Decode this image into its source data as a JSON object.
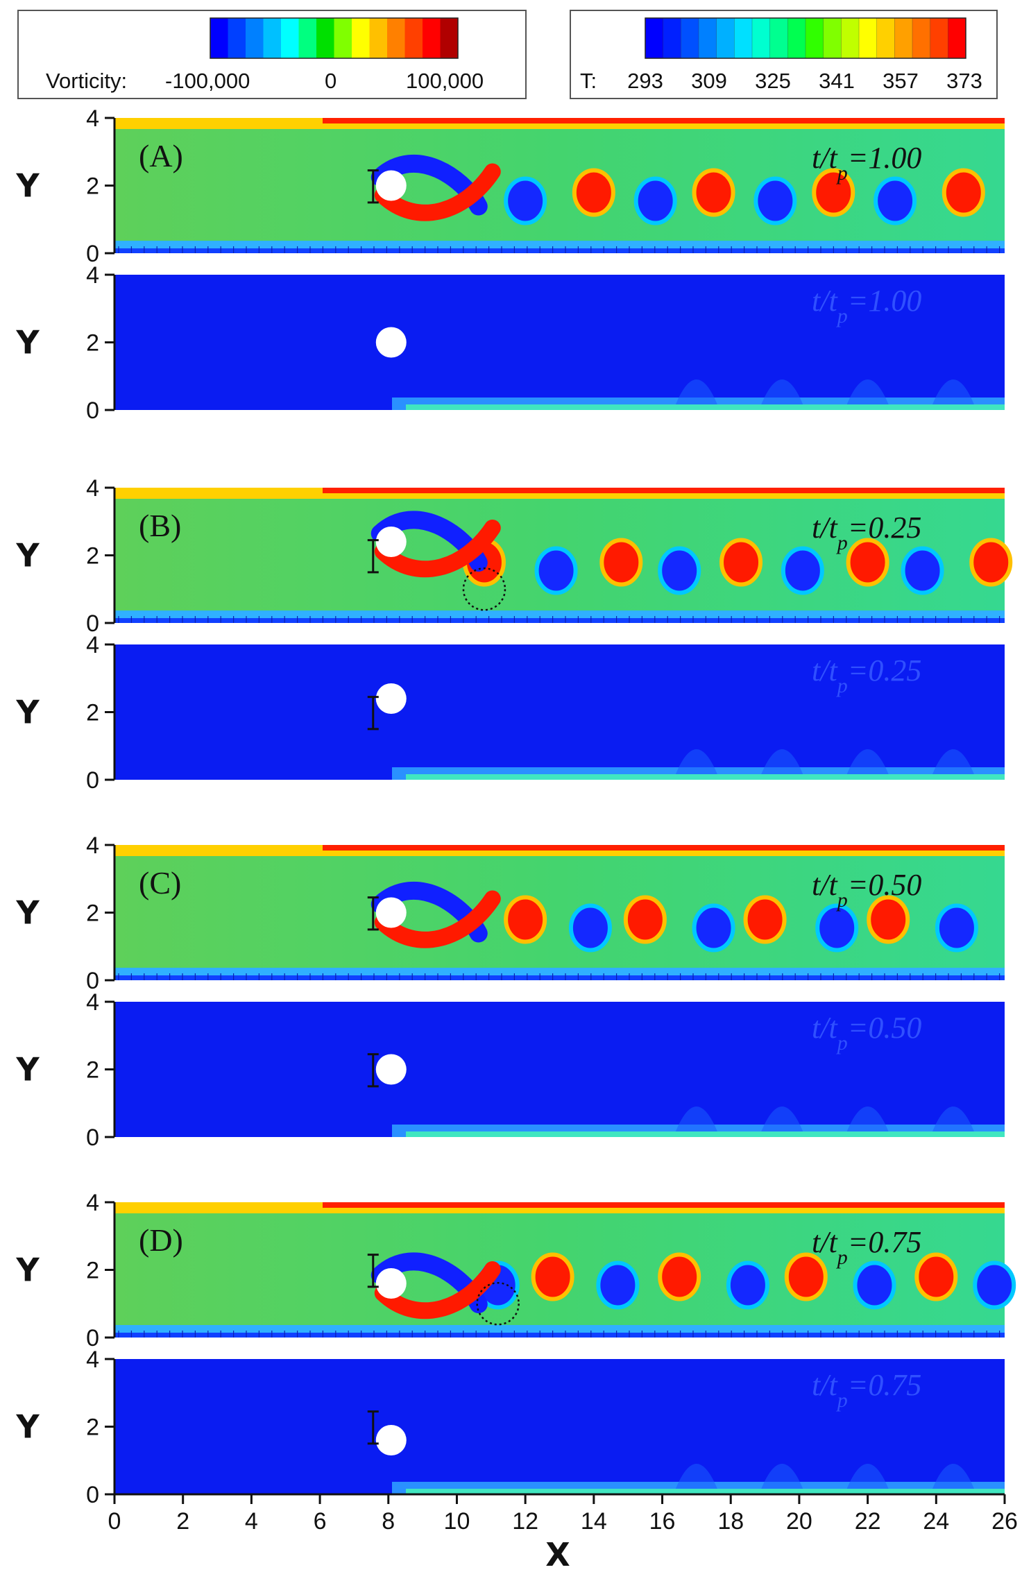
{
  "figure": {
    "legend_vorticity": {
      "label": "Vorticity:",
      "ticks": [
        "-100,000",
        "0",
        "100,000"
      ],
      "colors": [
        "#0000ff",
        "#0040ff",
        "#0080ff",
        "#00c0ff",
        "#00ffff",
        "#00ff80",
        "#00e000",
        "#80ff00",
        "#ffff00",
        "#ffc000",
        "#ff8000",
        "#ff4000",
        "#ff0000",
        "#b00000"
      ]
    },
    "legend_temperature": {
      "label": "T:",
      "ticks": [
        "293",
        "309",
        "325",
        "341",
        "357",
        "373"
      ],
      "colors": [
        "#0000ff",
        "#0020ff",
        "#0050ff",
        "#0080ff",
        "#00b0ff",
        "#00e0ff",
        "#00ffd0",
        "#00ff90",
        "#00ff50",
        "#30ff00",
        "#80ff00",
        "#c0ff00",
        "#ffff00",
        "#ffd000",
        "#ffa000",
        "#ff7000",
        "#ff4000",
        "#ff0000"
      ]
    },
    "x_axis": {
      "label": "X",
      "ticks": [
        "0",
        "2",
        "4",
        "6",
        "8",
        "10",
        "12",
        "14",
        "16",
        "18",
        "20",
        "22",
        "24",
        "26"
      ]
    },
    "y_axis": {
      "label": "Y",
      "ticks": [
        "0",
        "2",
        "4"
      ]
    },
    "panels": [
      {
        "id": "A",
        "letter": "(A)",
        "time_label": "t/t",
        "sub": "p",
        "value": "=1.00"
      },
      {
        "id": "B",
        "letter": "(B)",
        "time_label": "t/t",
        "sub": "p",
        "value": "=0.25"
      },
      {
        "id": "C",
        "letter": "(C)",
        "time_label": "t/t",
        "sub": "p",
        "value": "=0.50"
      },
      {
        "id": "D",
        "letter": "(D)",
        "time_label": "t/t",
        "sub": "p",
        "value": "=0.75"
      }
    ]
  },
  "chart_data": {
    "type": "heatmap",
    "description_fields": {
      "quantities": [
        "Vorticity",
        "T"
      ],
      "vorticity_range": [
        -100000,
        100000
      ],
      "temperature_range": [
        293,
        373
      ]
    },
    "xlim": [
      0,
      26
    ],
    "ylim": [
      0,
      4
    ],
    "xlabel": "X",
    "ylabel": "Y",
    "cylinder_x": 8,
    "snapshots": [
      {
        "panel": "A",
        "phase": 1.0,
        "cylinder_y": 2.0,
        "positive_vortices_x": [
          14.0,
          17.5,
          21.0,
          24.8
        ],
        "negative_vortices_x": [
          12.0,
          15.8,
          19.3,
          22.8
        ]
      },
      {
        "panel": "B",
        "phase": 0.25,
        "cylinder_y": 2.4,
        "positive_vortices_x": [
          10.8,
          14.8,
          18.3,
          22.0,
          25.6
        ],
        "negative_vortices_x": [
          12.9,
          16.5,
          20.1,
          23.6
        ]
      },
      {
        "panel": "C",
        "phase": 0.5,
        "cylinder_y": 2.0,
        "positive_vortices_x": [
          12.0,
          15.5,
          19.0,
          22.6
        ],
        "negative_vortices_x": [
          13.9,
          17.5,
          21.1,
          24.6
        ]
      },
      {
        "panel": "D",
        "phase": 0.75,
        "cylinder_y": 1.6,
        "positive_vortices_x": [
          12.8,
          16.5,
          20.2,
          24.0
        ],
        "negative_vortices_x": [
          11.2,
          14.7,
          18.5,
          22.2,
          25.7
        ]
      }
    ]
  }
}
